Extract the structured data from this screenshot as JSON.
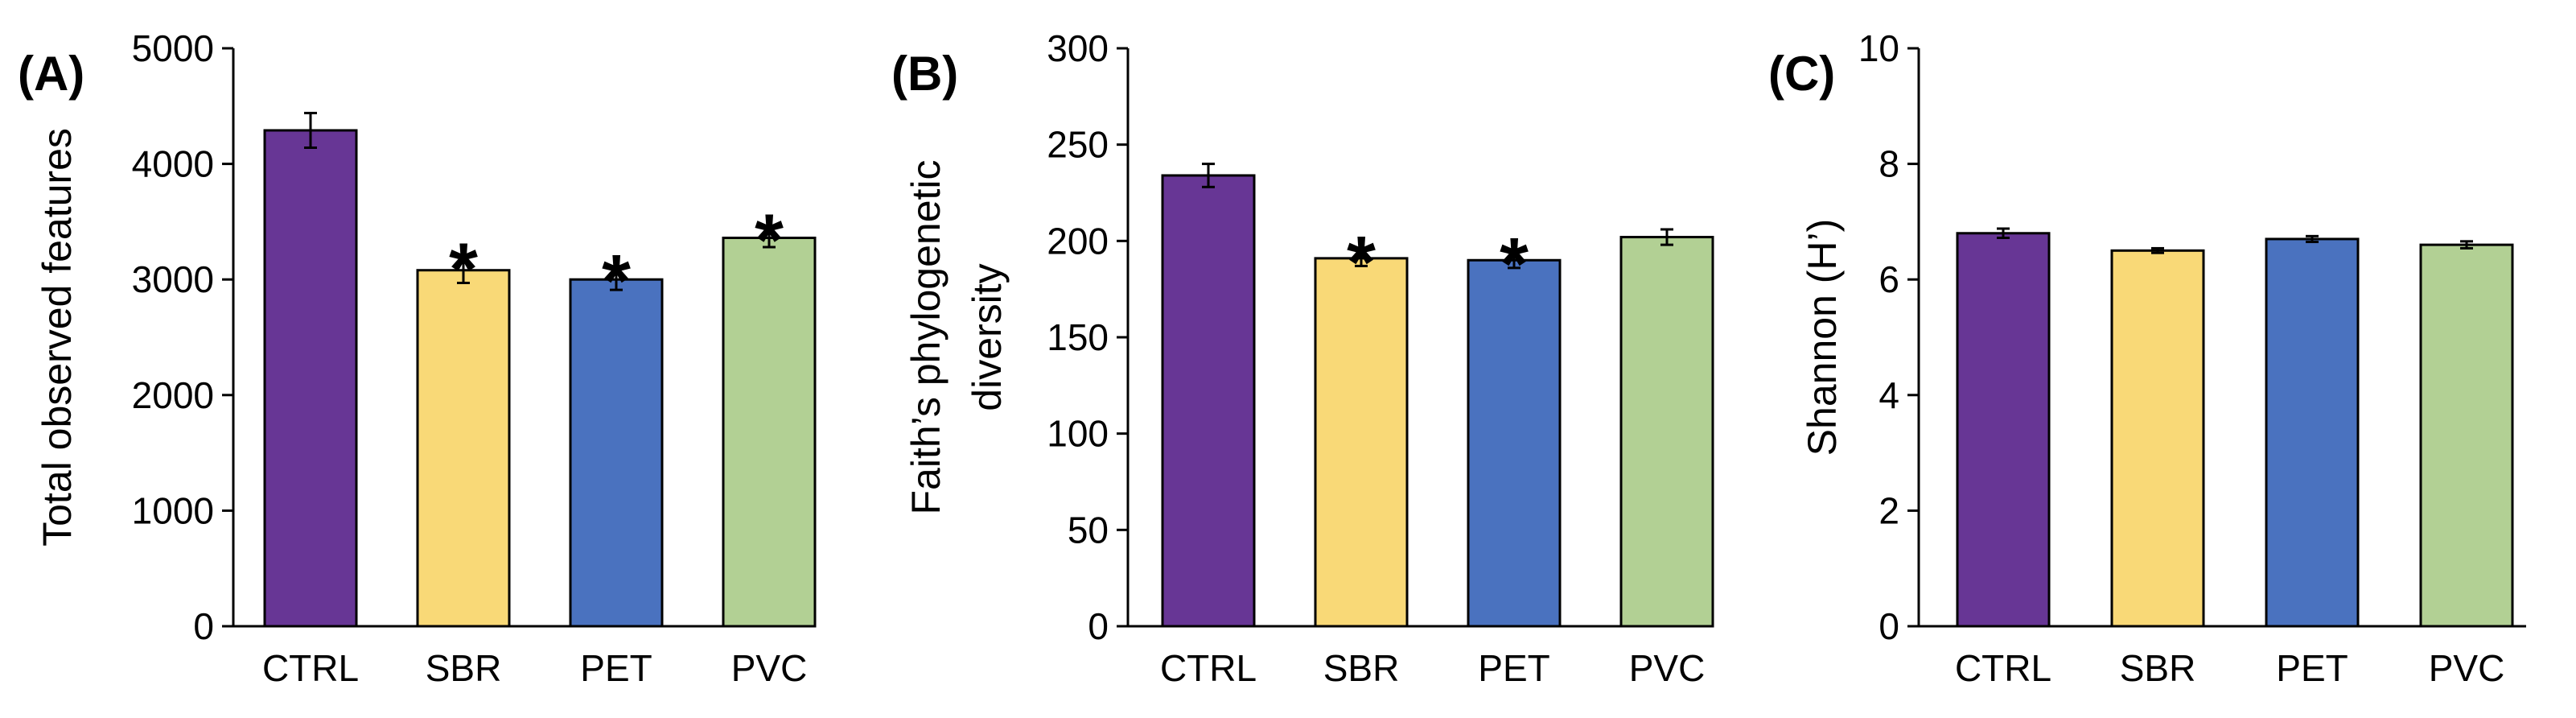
{
  "chart_data": [
    {
      "type": "bar",
      "panel_label": "(A)",
      "categories": [
        "CTRL",
        "SBR",
        "PET",
        "PVC"
      ],
      "values": [
        4290,
        3080,
        3000,
        3360
      ],
      "errors": [
        150,
        110,
        90,
        80
      ],
      "significant": [
        false,
        true,
        true,
        true
      ],
      "significance_marker": "*",
      "ylabel": "Total observed features",
      "ylim": [
        0,
        5000
      ],
      "yticks": [
        0,
        1000,
        2000,
        3000,
        4000,
        5000
      ],
      "colors": [
        "#673695",
        "#F9D977",
        "#4A72BF",
        "#B2D094"
      ],
      "grid": false,
      "legend": "none"
    },
    {
      "type": "bar",
      "panel_label": "(B)",
      "categories": [
        "CTRL",
        "SBR",
        "PET",
        "PVC"
      ],
      "values": [
        234,
        191,
        190,
        202
      ],
      "errors": [
        6,
        4,
        4,
        4
      ],
      "significant": [
        false,
        true,
        true,
        false
      ],
      "significance_marker": "*",
      "ylabel_lines": [
        "Faith’s phylogenetic",
        "diversity"
      ],
      "ylim": [
        0,
        300
      ],
      "yticks": [
        0,
        50,
        100,
        150,
        200,
        250,
        300
      ],
      "colors": [
        "#673695",
        "#F9D977",
        "#4A72BF",
        "#B2D094"
      ],
      "grid": false,
      "legend": "none"
    },
    {
      "type": "bar",
      "panel_label": "(C)",
      "categories": [
        "CTRL",
        "SBR",
        "PET",
        "PVC"
      ],
      "values": [
        6.8,
        6.5,
        6.7,
        6.6
      ],
      "errors": [
        0.08,
        0.04,
        0.05,
        0.06
      ],
      "significant": [
        false,
        false,
        false,
        false
      ],
      "significance_marker": "*",
      "ylabel": "Shannon (H’)",
      "ylim": [
        0,
        10
      ],
      "yticks": [
        0,
        2,
        4,
        6,
        8,
        10
      ],
      "colors": [
        "#673695",
        "#F9D977",
        "#4A72BF",
        "#B2D094"
      ],
      "grid": false,
      "legend": "none"
    }
  ]
}
